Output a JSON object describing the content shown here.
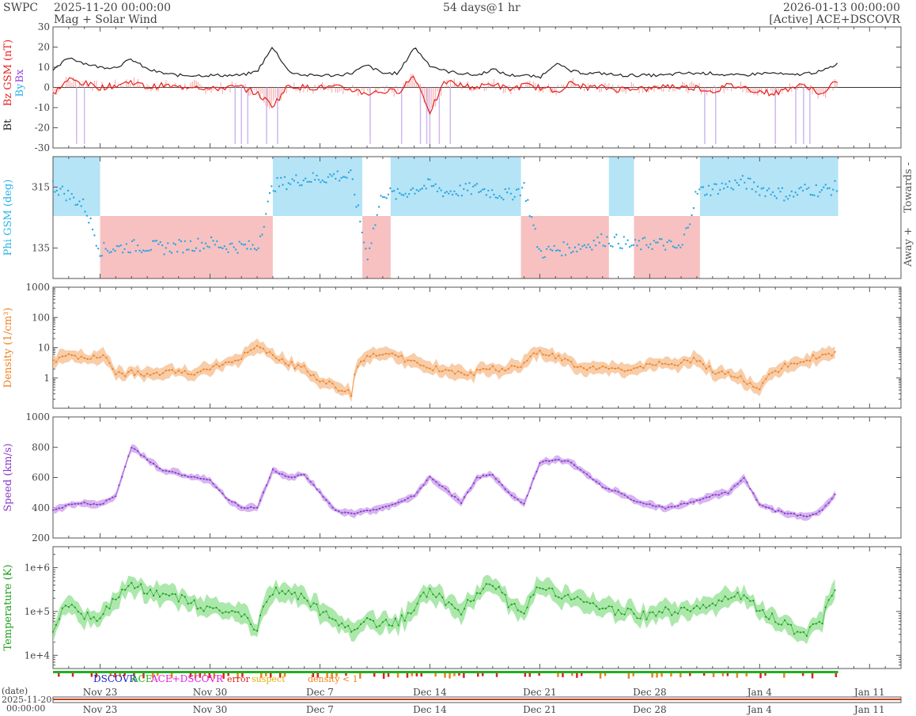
{
  "header": {
    "org": "SWPC",
    "start": "2025-11-20 00:00:00",
    "subtitle": "Mag + Solar Wind",
    "span": "54 days@1 hr",
    "end": "2026-01-13 00:00:00",
    "source": "[Active] ACE+DSCOVR"
  },
  "colors": {
    "bt": "#222222",
    "bz": "#e8201c",
    "bz_fill": "#f6a8a8",
    "bx": "#9a40e0",
    "by": "#29b4e8",
    "phi_towards": "#b5e4f7",
    "phi_away": "#f7c1c1",
    "phi_pts": "#29a6e0",
    "density": "#f08020",
    "density_fill": "#f7c49a",
    "speed": "#8a38c8",
    "speed_fill": "#cfa8ee",
    "temp": "#1aa01a",
    "temp_fill": "#9ee49e"
  },
  "time_axis": {
    "ticks": [
      {
        "label": "Nov 23",
        "day": 3
      },
      {
        "label": "Nov 30",
        "day": 10
      },
      {
        "label": "Dec 7",
        "day": 17
      },
      {
        "label": "Dec 14",
        "day": 24
      },
      {
        "label": "Dec 21",
        "day": 31
      },
      {
        "label": "Dec 28",
        "day": 38
      },
      {
        "label": "Jan 4",
        "day": 45
      },
      {
        "label": "Jan 11",
        "day": 52
      }
    ],
    "date_label": "(date)",
    "date_start": "2025-11-20",
    "time_start": "00:00:00"
  },
  "source_legend": {
    "dscovr": "DSCOVR",
    "ace": "ACE",
    "both": "ACE+DSCOVR",
    "error": "error",
    "suspect": "suspect",
    "density": "density < 1",
    "colors": {
      "dscovr": "#2020c0",
      "ace": "#20b020",
      "both": "#e020e0",
      "error": "#e02020",
      "suspect": "#e0b000",
      "density": "#f08020"
    }
  },
  "chart_data": [
    {
      "type": "line",
      "panel": "mag",
      "ylabel_parts": [
        "Bt",
        "Bz GSM (nT)",
        "Bx",
        "By"
      ],
      "ylim": [
        -30,
        30
      ],
      "yticks": [
        -30,
        -20,
        -10,
        0,
        10,
        20,
        30
      ],
      "x_unit": "days since 2025-11-20",
      "series": [
        {
          "name": "Bt",
          "x": [
            0,
            1,
            2,
            3,
            4,
            5,
            6,
            7,
            8,
            9,
            10,
            11,
            12,
            13,
            14,
            15,
            16,
            17,
            18,
            19,
            20,
            21,
            22,
            23,
            24,
            25,
            26,
            27,
            28,
            29,
            30,
            31,
            32,
            33,
            34,
            35,
            36,
            37,
            38,
            39,
            40,
            41,
            42,
            43,
            44,
            45,
            46,
            47,
            48,
            49,
            50
          ],
          "values": [
            8,
            15,
            12,
            10,
            10,
            14,
            9,
            7,
            6,
            6,
            6,
            6,
            6,
            8,
            20,
            8,
            6,
            6,
            6,
            7,
            11,
            7,
            7,
            20,
            11,
            8,
            7,
            6,
            9,
            6,
            6,
            5,
            12,
            8,
            7,
            7,
            6,
            6,
            6,
            6,
            7,
            7,
            7,
            6,
            6,
            7,
            7,
            6,
            7,
            8,
            12
          ]
        },
        {
          "name": "Bz",
          "x": [
            0,
            1,
            2,
            3,
            4,
            5,
            6,
            7,
            8,
            9,
            10,
            11,
            12,
            13,
            14,
            15,
            16,
            17,
            18,
            19,
            20,
            21,
            22,
            23,
            24,
            25,
            26,
            27,
            28,
            29,
            30,
            31,
            32,
            33,
            34,
            35,
            36,
            37,
            38,
            39,
            40,
            41,
            42,
            43,
            44,
            45,
            46,
            47,
            48,
            49,
            50
          ],
          "values": [
            -3,
            4,
            2,
            0,
            1,
            3,
            0,
            1,
            0,
            1,
            -1,
            0,
            0,
            -3,
            -9,
            1,
            0,
            0,
            0,
            -1,
            -3,
            -2,
            -2,
            6,
            -12,
            3,
            1,
            0,
            2,
            -1,
            1,
            0,
            -2,
            2,
            0,
            0,
            -1,
            0,
            -1,
            1,
            0,
            0,
            -2,
            1,
            0,
            -2,
            -3,
            0,
            1,
            -4,
            4
          ]
        }
      ]
    },
    {
      "type": "scatter",
      "panel": "phi",
      "ylabel": "Phi GSM (deg)",
      "ylim": [
        45,
        405
      ],
      "yticks": [
        135,
        315
      ],
      "side_labels": [
        "Towards -",
        "Away +"
      ],
      "towards_intervals": [
        [
          0,
          3
        ],
        [
          14,
          19.7
        ],
        [
          21.5,
          29.8
        ],
        [
          35.4,
          37
        ],
        [
          41.2,
          50
        ]
      ],
      "away_intervals": [
        [
          3,
          14
        ],
        [
          19.7,
          21.5
        ],
        [
          29.8,
          35.4
        ],
        [
          37,
          41.2
        ]
      ],
      "x": [
        0,
        1,
        2,
        3,
        4,
        5,
        6,
        7,
        8,
        9,
        10,
        11,
        12,
        13,
        14,
        15,
        16,
        17,
        18,
        19,
        20,
        21,
        22,
        23,
        24,
        25,
        26,
        27,
        28,
        29,
        30,
        31,
        32,
        33,
        34,
        35,
        36,
        37,
        38,
        39,
        40,
        41,
        42,
        43,
        44,
        45,
        46,
        47,
        48,
        49,
        50
      ],
      "values": [
        320,
        290,
        260,
        130,
        135,
        140,
        140,
        135,
        140,
        145,
        150,
        140,
        140,
        135,
        320,
        330,
        340,
        340,
        350,
        345,
        110,
        300,
        290,
        310,
        320,
        300,
        305,
        310,
        300,
        290,
        315,
        120,
        130,
        135,
        145,
        160,
        155,
        140,
        150,
        145,
        130,
        300,
        310,
        320,
        330,
        310,
        300,
        290,
        310,
        305,
        315
      ]
    },
    {
      "type": "area",
      "panel": "density",
      "ylabel": "Density (1/cm³)",
      "yscale": "log",
      "ylim": [
        0.1,
        1000
      ],
      "ytick_labels": [
        "1",
        "10",
        "100",
        "1000"
      ],
      "ytick_values": [
        1,
        10,
        100,
        1000
      ],
      "x": [
        0,
        1,
        2,
        3,
        4,
        5,
        6,
        7,
        8,
        9,
        10,
        11,
        12,
        13,
        14,
        15,
        16,
        17,
        18,
        19,
        20,
        21,
        22,
        23,
        24,
        25,
        26,
        27,
        28,
        29,
        30,
        31,
        32,
        33,
        34,
        35,
        36,
        37,
        38,
        39,
        40,
        41,
        42,
        43,
        44,
        45,
        46,
        47,
        48,
        49,
        50
      ],
      "values": [
        4,
        5,
        4,
        6,
        1.2,
        1.5,
        1.2,
        1.5,
        1.5,
        1.5,
        2,
        3,
        5,
        10,
        5,
        3,
        2,
        0.8,
        0.5,
        0.3,
        5,
        7,
        5,
        3,
        2,
        2,
        1.5,
        1.5,
        2,
        2,
        3,
        8,
        5,
        3,
        2,
        2,
        2,
        2,
        2.5,
        3,
        3,
        4,
        1.5,
        1.5,
        0.8,
        0.5,
        1.5,
        3,
        4,
        6,
        6
      ]
    },
    {
      "type": "area",
      "panel": "speed",
      "ylabel": "Speed (km/s)",
      "ylim": [
        200,
        1000
      ],
      "yticks": [
        200,
        400,
        600,
        800,
        1000
      ],
      "x": [
        0,
        1,
        2,
        3,
        4,
        5,
        6,
        7,
        8,
        9,
        10,
        11,
        12,
        13,
        14,
        15,
        16,
        17,
        18,
        19,
        20,
        21,
        22,
        23,
        24,
        25,
        26,
        27,
        28,
        29,
        30,
        31,
        32,
        33,
        34,
        35,
        36,
        37,
        38,
        39,
        40,
        41,
        42,
        43,
        44,
        45,
        46,
        47,
        48,
        49,
        50
      ],
      "values": [
        380,
        420,
        430,
        420,
        480,
        800,
        720,
        650,
        620,
        600,
        580,
        470,
        400,
        400,
        650,
        600,
        620,
        500,
        380,
        360,
        380,
        400,
        430,
        480,
        600,
        520,
        430,
        600,
        620,
        500,
        420,
        700,
        720,
        700,
        620,
        540,
        500,
        450,
        420,
        400,
        420,
        450,
        480,
        500,
        600,
        420,
        380,
        360,
        340,
        380,
        520
      ]
    },
    {
      "type": "area",
      "panel": "temperature",
      "ylabel": "Temperature (K)",
      "yscale": "log",
      "ylim": [
        5000,
        3000000
      ],
      "ytick_labels": [
        "1e+4",
        "1e+5",
        "1e+6"
      ],
      "ytick_values": [
        10000,
        100000,
        1000000
      ],
      "x": [
        0,
        1,
        2,
        3,
        4,
        5,
        6,
        7,
        8,
        9,
        10,
        11,
        12,
        13,
        14,
        15,
        16,
        17,
        18,
        19,
        20,
        21,
        22,
        23,
        24,
        25,
        26,
        27,
        28,
        29,
        30,
        31,
        32,
        33,
        34,
        35,
        36,
        37,
        38,
        39,
        40,
        41,
        42,
        43,
        44,
        45,
        46,
        47,
        48,
        49,
        50
      ],
      "values": [
        30000,
        150000,
        80000,
        60000,
        200000,
        400000,
        300000,
        250000,
        200000,
        150000,
        100000,
        100000,
        80000,
        30000,
        300000,
        250000,
        200000,
        100000,
        60000,
        40000,
        60000,
        50000,
        60000,
        100000,
        300000,
        150000,
        80000,
        250000,
        400000,
        150000,
        80000,
        350000,
        250000,
        200000,
        150000,
        120000,
        100000,
        90000,
        80000,
        100000,
        100000,
        120000,
        150000,
        200000,
        250000,
        100000,
        70000,
        40000,
        30000,
        60000,
        300000
      ]
    }
  ]
}
